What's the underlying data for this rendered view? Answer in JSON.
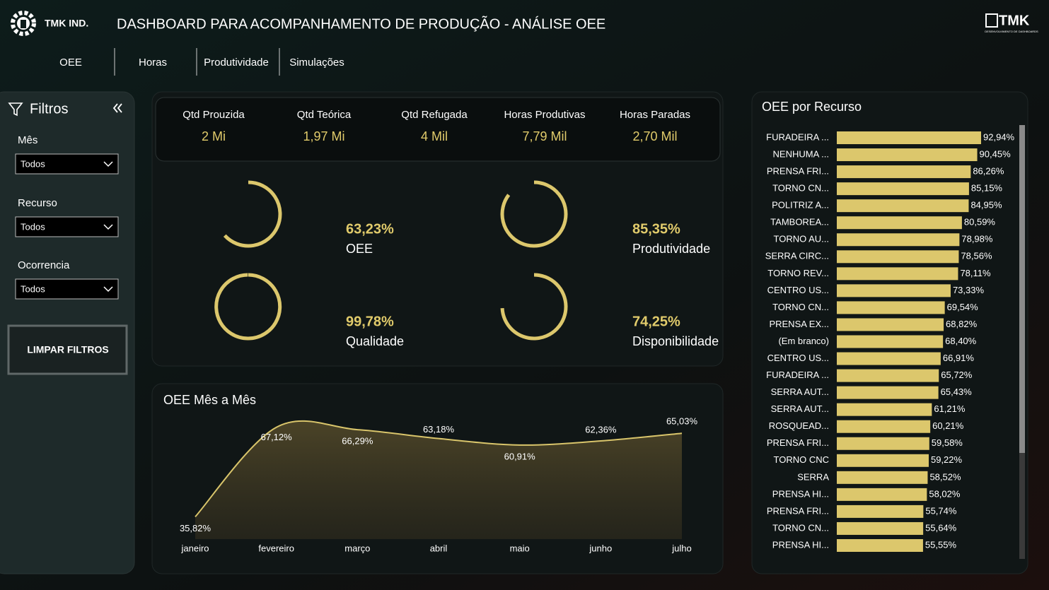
{
  "header": {
    "brand": "TMK IND.",
    "title": "DASHBOARD PARA ACOMPANHAMENTO DE PRODUÇÃO - ANÁLISE OEE",
    "logo": "TMK",
    "logo_subtitle": "DESENVOLVIMENTO DE DASHBOARDS"
  },
  "nav": [
    "OEE",
    "Horas",
    "Produtividade",
    "Simulações"
  ],
  "filters": {
    "title": "Filtros",
    "fields": [
      {
        "label": "Mês",
        "value": "Todos"
      },
      {
        "label": "Recurso",
        "value": "Todos"
      },
      {
        "label": "Ocorrencia",
        "value": "Todos"
      }
    ],
    "button": "LIMPAR FILTROS"
  },
  "kpis": [
    {
      "label": "Qtd Prouzida",
      "value": "2 Mi"
    },
    {
      "label": "Qtd Teórica",
      "value": "1,97 Mi"
    },
    {
      "label": "Qtd Refugada",
      "value": "4 Mil"
    },
    {
      "label": "Horas Produtivas",
      "value": "7,79 Mil"
    },
    {
      "label": "Horas Paradas",
      "value": "2,70 Mil"
    }
  ],
  "gauges": [
    {
      "label": "OEE",
      "value": 63.23,
      "value_label": "63,23%"
    },
    {
      "label": "Produtividade",
      "value": 85.35,
      "value_label": "85,35%"
    },
    {
      "label": "Qualidade",
      "value": 99.78,
      "value_label": "99,78%"
    },
    {
      "label": "Disponibilidade",
      "value": 74.25,
      "value_label": "74,25%"
    }
  ],
  "chart_data": [
    {
      "type": "line",
      "title": "OEE Mês a Mês",
      "categories": [
        "janeiro",
        "fevereiro",
        "março",
        "abril",
        "maio",
        "junho",
        "julho"
      ],
      "values": [
        35.82,
        67.12,
        66.29,
        63.18,
        60.91,
        62.36,
        65.03
      ],
      "value_labels": [
        "35,82%",
        "67,12%",
        "66,29%",
        "63,18%",
        "60,91%",
        "62,36%",
        "65,03%"
      ],
      "color": "#d9c56b",
      "ylim": [
        28,
        72
      ]
    },
    {
      "type": "hbar",
      "title": "OEE por Recurso",
      "categories": [
        "FURADEIRA ...",
        "NENHUMA ...",
        "PRENSA FRI...",
        "TORNO CN...",
        "POLITRIZ A...",
        "TAMBOREA...",
        "TORNO AU...",
        "SERRA CIRC...",
        "TORNO REV...",
        "CENTRO US...",
        "TORNO CN...",
        "PRENSA EX...",
        "(Em branco)",
        "CENTRO US...",
        "FURADEIRA ...",
        "SERRA AUT...",
        "SERRA AUT...",
        "ROSQUEAD...",
        "PRENSA FRI...",
        "TORNO CNC",
        "SERRA",
        "PRENSA HI...",
        "PRENSA FRI...",
        "TORNO CN...",
        "PRENSA HI..."
      ],
      "values": [
        92.94,
        90.45,
        86.26,
        85.15,
        84.95,
        80.59,
        78.98,
        78.56,
        78.11,
        73.33,
        69.54,
        68.82,
        68.4,
        66.91,
        65.72,
        65.43,
        61.21,
        60.21,
        59.58,
        59.22,
        58.52,
        58.02,
        55.74,
        55.64,
        55.55
      ],
      "value_labels": [
        "92,94%",
        "90,45%",
        "86,26%",
        "85,15%",
        "84,95%",
        "80,59%",
        "78,98%",
        "78,56%",
        "78,11%",
        "73,33%",
        "69,54%",
        "68,82%",
        "68,40%",
        "66,91%",
        "65,72%",
        "65,43%",
        "61,21%",
        "60,21%",
        "59,58%",
        "59,22%",
        "58,52%",
        "58,02%",
        "55,74%",
        "55,64%",
        "55,55%"
      ],
      "color": "#dcc76c",
      "xlim": [
        0,
        100
      ]
    }
  ]
}
